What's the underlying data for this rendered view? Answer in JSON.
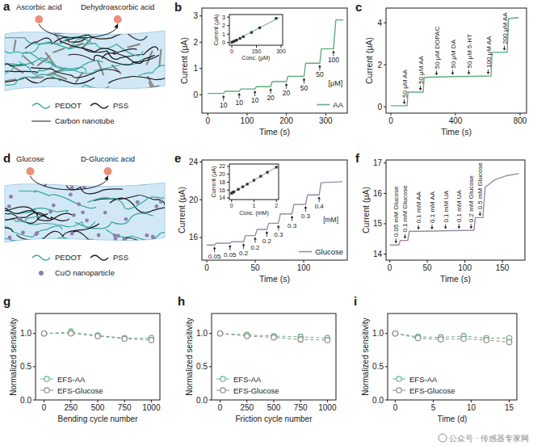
{
  "chart_data": [
    {
      "panel_label": "b",
      "type": "line",
      "x_label": "Time (s)",
      "y_label": "Current (μA)",
      "xlim": [
        -15,
        355
      ],
      "xticks": [
        0,
        100,
        200,
        300
      ],
      "ylim": [
        -0.7,
        3.3
      ],
      "yticks": [
        0,
        1,
        2,
        3
      ],
      "legend": "lower right",
      "series": [
        {
          "name": "AA",
          "color": "#5fae7e",
          "x": [
            0,
            40,
            44,
            80,
            84,
            120,
            124,
            160,
            164,
            200,
            204,
            245,
            249,
            285,
            289,
            320,
            326,
            345
          ],
          "values": [
            0.05,
            0.05,
            0.13,
            0.13,
            0.22,
            0.22,
            0.31,
            0.31,
            0.5,
            0.5,
            0.7,
            0.7,
            1.2,
            1.2,
            1.75,
            1.75,
            2.85,
            2.85
          ]
        }
      ],
      "annotations": [
        {
          "text": "10",
          "x": 40,
          "y": 0.05
        },
        {
          "text": "10",
          "x": 80,
          "y": 0.13
        },
        {
          "text": "10",
          "x": 120,
          "y": 0.22
        },
        {
          "text": "20",
          "x": 160,
          "y": 0.31
        },
        {
          "text": "20",
          "x": 200,
          "y": 0.5
        },
        {
          "text": "50",
          "x": 245,
          "y": 0.7
        },
        {
          "text": "50",
          "x": 285,
          "y": 1.2
        },
        {
          "text": "100",
          "x": 320,
          "y": 1.75
        }
      ],
      "unit_label": {
        "text": "[μM]",
        "x": 325,
        "y": 0.35
      },
      "inset": {
        "type": "scatter",
        "x_label": "Conc. (μM)",
        "y_label": "Current (μA)",
        "xlim": [
          -15,
          310
        ],
        "xticks": [
          0,
          150,
          300
        ],
        "ylim": [
          -0.3,
          3.3
        ],
        "yticks": [
          0,
          1,
          2,
          3
        ],
        "series": [
          {
            "type": "line",
            "color": "#5fae7e",
            "x": [
              0,
              290
            ],
            "values": [
              0.05,
              2.95
            ]
          },
          {
            "type": "scatter",
            "color": "#333333",
            "marker": "square",
            "x": [
              0,
              10,
              20,
              30,
              50,
              70,
              120,
              170,
              270
            ],
            "values": [
              0.05,
              0.13,
              0.22,
              0.31,
              0.5,
              0.7,
              1.2,
              1.75,
              2.85
            ]
          }
        ]
      }
    },
    {
      "panel_label": "c",
      "type": "line",
      "x_label": "Time (s)",
      "y_label": "Current (μA)",
      "xlim": [
        -30,
        840
      ],
      "xticks": [
        0,
        400,
        800
      ],
      "ylim": [
        -0.3,
        4.7
      ],
      "yticks": [
        0,
        2,
        4
      ],
      "series": [
        {
          "color": "#5fae7e",
          "x": [
            0,
            100,
            106,
            200,
            206,
            300,
            400,
            500,
            620,
            626,
            720,
            728,
            790
          ],
          "values": [
            0.05,
            0.05,
            0.7,
            0.7,
            1.4,
            1.42,
            1.44,
            1.45,
            1.47,
            2.6,
            2.6,
            4.2,
            4.25
          ]
        }
      ],
      "annotations": [
        {
          "text": "50 μM AA",
          "x": 100,
          "y": 0.05
        },
        {
          "text": "50 μM AA",
          "x": 200,
          "y": 0.7
        },
        {
          "text": "50 μM DOPAC",
          "x": 300,
          "y": 1.42
        },
        {
          "text": "50 μM DA",
          "x": 400,
          "y": 1.44
        },
        {
          "text": "50 μM 5-HT",
          "x": 500,
          "y": 1.45
        },
        {
          "text": "100 μM AA",
          "x": 620,
          "y": 1.47
        },
        {
          "text": "200 μM AA",
          "x": 720,
          "y": 2.6
        }
      ]
    },
    {
      "panel_label": "e",
      "type": "line",
      "x_label": "Time (s)",
      "y_label": "Current (μA)",
      "xlim": [
        -5,
        145
      ],
      "xticks": [
        0,
        50,
        100
      ],
      "ylim": [
        13.6,
        24.2
      ],
      "yticks": [
        16,
        20,
        24
      ],
      "legend": "lower right",
      "series": [
        {
          "name": "Glucose",
          "color": "#9c8aa5",
          "x": [
            0,
            8,
            10,
            24,
            26,
            38,
            40,
            50,
            52,
            62,
            64,
            74,
            76,
            88,
            90,
            102,
            104,
            116,
            118,
            140
          ],
          "values": [
            15.2,
            15.2,
            15.4,
            15.4,
            15.55,
            15.55,
            16.2,
            16.2,
            16.85,
            16.85,
            17.5,
            17.5,
            18.5,
            18.5,
            19.5,
            19.5,
            20.5,
            20.5,
            21.8,
            21.9
          ]
        }
      ],
      "annotations": [
        {
          "text": "0.05",
          "x": 8,
          "y": 15.2
        },
        {
          "text": "0.05",
          "x": 24,
          "y": 15.4
        },
        {
          "text": "0.2",
          "x": 38,
          "y": 15.55
        },
        {
          "text": "0.2",
          "x": 50,
          "y": 16.2
        },
        {
          "text": "0.2",
          "x": 62,
          "y": 16.85
        },
        {
          "text": "0.3",
          "x": 74,
          "y": 17.5
        },
        {
          "text": "0.3",
          "x": 88,
          "y": 18.5
        },
        {
          "text": "0.3",
          "x": 102,
          "y": 19.5
        },
        {
          "text": "0.4",
          "x": 116,
          "y": 20.5
        }
      ],
      "unit_label": {
        "text": "[mM]",
        "x": 128,
        "y": 17.6
      },
      "inset": {
        "type": "scatter",
        "x_label": "Conc. (mM)",
        "y_label": "Current (μA)",
        "xlim": [
          -0.1,
          2.1
        ],
        "xticks": [
          0,
          1,
          2
        ],
        "ylim": [
          13.6,
          22.6
        ],
        "yticks": [
          14,
          16,
          18,
          20,
          22
        ],
        "series": [
          {
            "type": "line",
            "color": "#9c8aa5",
            "x": [
              0,
              2
            ],
            "values": [
              15.2,
              21.8
            ]
          },
          {
            "type": "scatter",
            "color": "#333333",
            "marker": "square",
            "x": [
              0,
              0.05,
              0.1,
              0.3,
              0.5,
              0.7,
              1,
              1.3,
              1.6,
              2
            ],
            "values": [
              15.2,
              15.4,
              15.55,
              16.2,
              16.85,
              17.5,
              18.5,
              19.5,
              20.5,
              21.8
            ]
          }
        ]
      }
    },
    {
      "panel_label": "f",
      "type": "line",
      "x_label": "Time (s)",
      "y_label": "Current (μA)",
      "xlim": [
        -5,
        180
      ],
      "xticks": [
        0,
        50,
        100,
        150
      ],
      "ylim": [
        13.8,
        17.1
      ],
      "yticks": [
        14,
        15,
        16,
        17
      ],
      "series": [
        {
          "color": "#9c8aa5",
          "x": [
            0,
            12,
            14,
            24,
            26,
            42,
            60,
            78,
            96,
            112,
            114,
            124,
            127,
            140,
            155,
            172
          ],
          "values": [
            14.3,
            14.3,
            14.45,
            14.45,
            14.75,
            14.75,
            14.76,
            14.77,
            14.78,
            14.78,
            15.2,
            15.2,
            16.2,
            16.45,
            16.58,
            16.65
          ]
        }
      ],
      "annotations": [
        {
          "text": "0.05 mM Glucose",
          "x": 12,
          "y": 14.3
        },
        {
          "text": "0.1 mM Glucose",
          "x": 24,
          "y": 14.45
        },
        {
          "text": "0.1 mM AA",
          "x": 42,
          "y": 14.75
        },
        {
          "text": "0.1 mM AA",
          "x": 60,
          "y": 14.76
        },
        {
          "text": "0.1 mM UA",
          "x": 78,
          "y": 14.77
        },
        {
          "text": "0.1 mM UA",
          "x": 96,
          "y": 14.78
        },
        {
          "text": "0.2 mM Glucose",
          "x": 112,
          "y": 14.78
        },
        {
          "text": "0.5 mM Glucose",
          "x": 124,
          "y": 15.2
        }
      ]
    },
    {
      "panel_label": "g",
      "type": "scatter",
      "x_label": "Bending cycle number",
      "y_label": "Normalized sensitivity",
      "xlim": [
        -80,
        1080
      ],
      "xticks": [
        0,
        250,
        500,
        750,
        1000
      ],
      "ylim": [
        0,
        1.3
      ],
      "yticks": [
        {
          "value": 0,
          "label": "0.0"
        },
        0.5,
        {
          "value": 1,
          "label": "1.0"
        }
      ],
      "legend": "lower left",
      "series": [
        {
          "name": "EFS-AA",
          "color": "#6db38b",
          "marker": "open-circle",
          "line_style": "dashed",
          "x": [
            0,
            250,
            500,
            750,
            1000
          ],
          "values": [
            1,
            1.02,
            0.97,
            0.93,
            0.93
          ],
          "errors": [
            0.01,
            0.05,
            0.02,
            0.03,
            0.04
          ]
        },
        {
          "name": "EFS-Glucose",
          "color": "#8e8e8e",
          "marker": "open-circle",
          "line_style": "dashed",
          "x": [
            0,
            250,
            500,
            750,
            1000
          ],
          "values": [
            1,
            1,
            0.96,
            0.92,
            0.9
          ],
          "errors": [
            0.01,
            0.03,
            0.03,
            0.03,
            0.03
          ]
        }
      ]
    },
    {
      "panel_label": "h",
      "type": "scatter",
      "x_label": "Friction cycle number",
      "y_label": "Normalized sensitivity",
      "xlim": [
        -80,
        1080
      ],
      "xticks": [
        0,
        250,
        500,
        750,
        1000
      ],
      "ylim": [
        0,
        1.3
      ],
      "yticks": [
        {
          "value": 0,
          "label": "0.0"
        },
        0.5,
        {
          "value": 1,
          "label": "1.0"
        }
      ],
      "legend": "lower left",
      "series": [
        {
          "name": "EFS-AA",
          "color": "#6db38b",
          "marker": "open-circle",
          "line_style": "dashed",
          "x": [
            0,
            250,
            500,
            750,
            1000
          ],
          "values": [
            1,
            0.98,
            0.96,
            0.95,
            0.93
          ],
          "errors": [
            0.01,
            0.02,
            0.03,
            0.04,
            0.04
          ]
        },
        {
          "name": "EFS-Glucose",
          "color": "#8e8e8e",
          "marker": "open-circle",
          "line_style": "dashed",
          "x": [
            0,
            250,
            500,
            750,
            1000
          ],
          "values": [
            1,
            0.96,
            0.94,
            0.91,
            0.9
          ],
          "errors": [
            0.01,
            0.02,
            0.02,
            0.04,
            0.03
          ]
        }
      ]
    },
    {
      "panel_label": "i",
      "type": "scatter",
      "x_label": "Time (d)",
      "y_label": "Normalized sensitivity",
      "xlim": [
        -1,
        16
      ],
      "xticks": [
        0,
        5,
        10,
        15
      ],
      "ylim": [
        0,
        1.3
      ],
      "yticks": [
        {
          "value": 0,
          "label": "0.0"
        },
        0.5,
        {
          "value": 1,
          "label": "1.0"
        }
      ],
      "legend": "lower left",
      "series": [
        {
          "name": "EFS-AA",
          "color": "#6db38b",
          "marker": "open-circle",
          "line_style": "dashed",
          "x": [
            0,
            3,
            6,
            9,
            12,
            15
          ],
          "values": [
            1,
            0.95,
            0.94,
            0.96,
            0.93,
            0.93
          ],
          "errors": [
            0.01,
            0.04,
            0.04,
            0.04,
            0.03,
            0.03
          ]
        },
        {
          "name": "EFS-Glucose",
          "color": "#8e8e8e",
          "marker": "open-circle",
          "line_style": "dashed",
          "x": [
            0,
            3,
            6,
            9,
            12,
            15
          ],
          "values": [
            1,
            0.93,
            0.91,
            0.92,
            0.9,
            0.87
          ],
          "errors": [
            0.01,
            0.03,
            0.03,
            0.03,
            0.03,
            0.03
          ]
        }
      ]
    }
  ],
  "diagrams": [
    {
      "panel_label": "a",
      "reactant": "Ascorbic acid",
      "product": "Dehydroascorbic acid",
      "key_items": [
        "PEDOT",
        "PSS",
        "Carbon nanotube"
      ]
    },
    {
      "panel_label": "d",
      "reactant": "Glucose",
      "product": "D-Gluconic acid",
      "key_items": [
        "PEDOT",
        "PSS",
        "CuO nanoparticle"
      ]
    }
  ],
  "watermark": "公众号 · 传感器专家网"
}
